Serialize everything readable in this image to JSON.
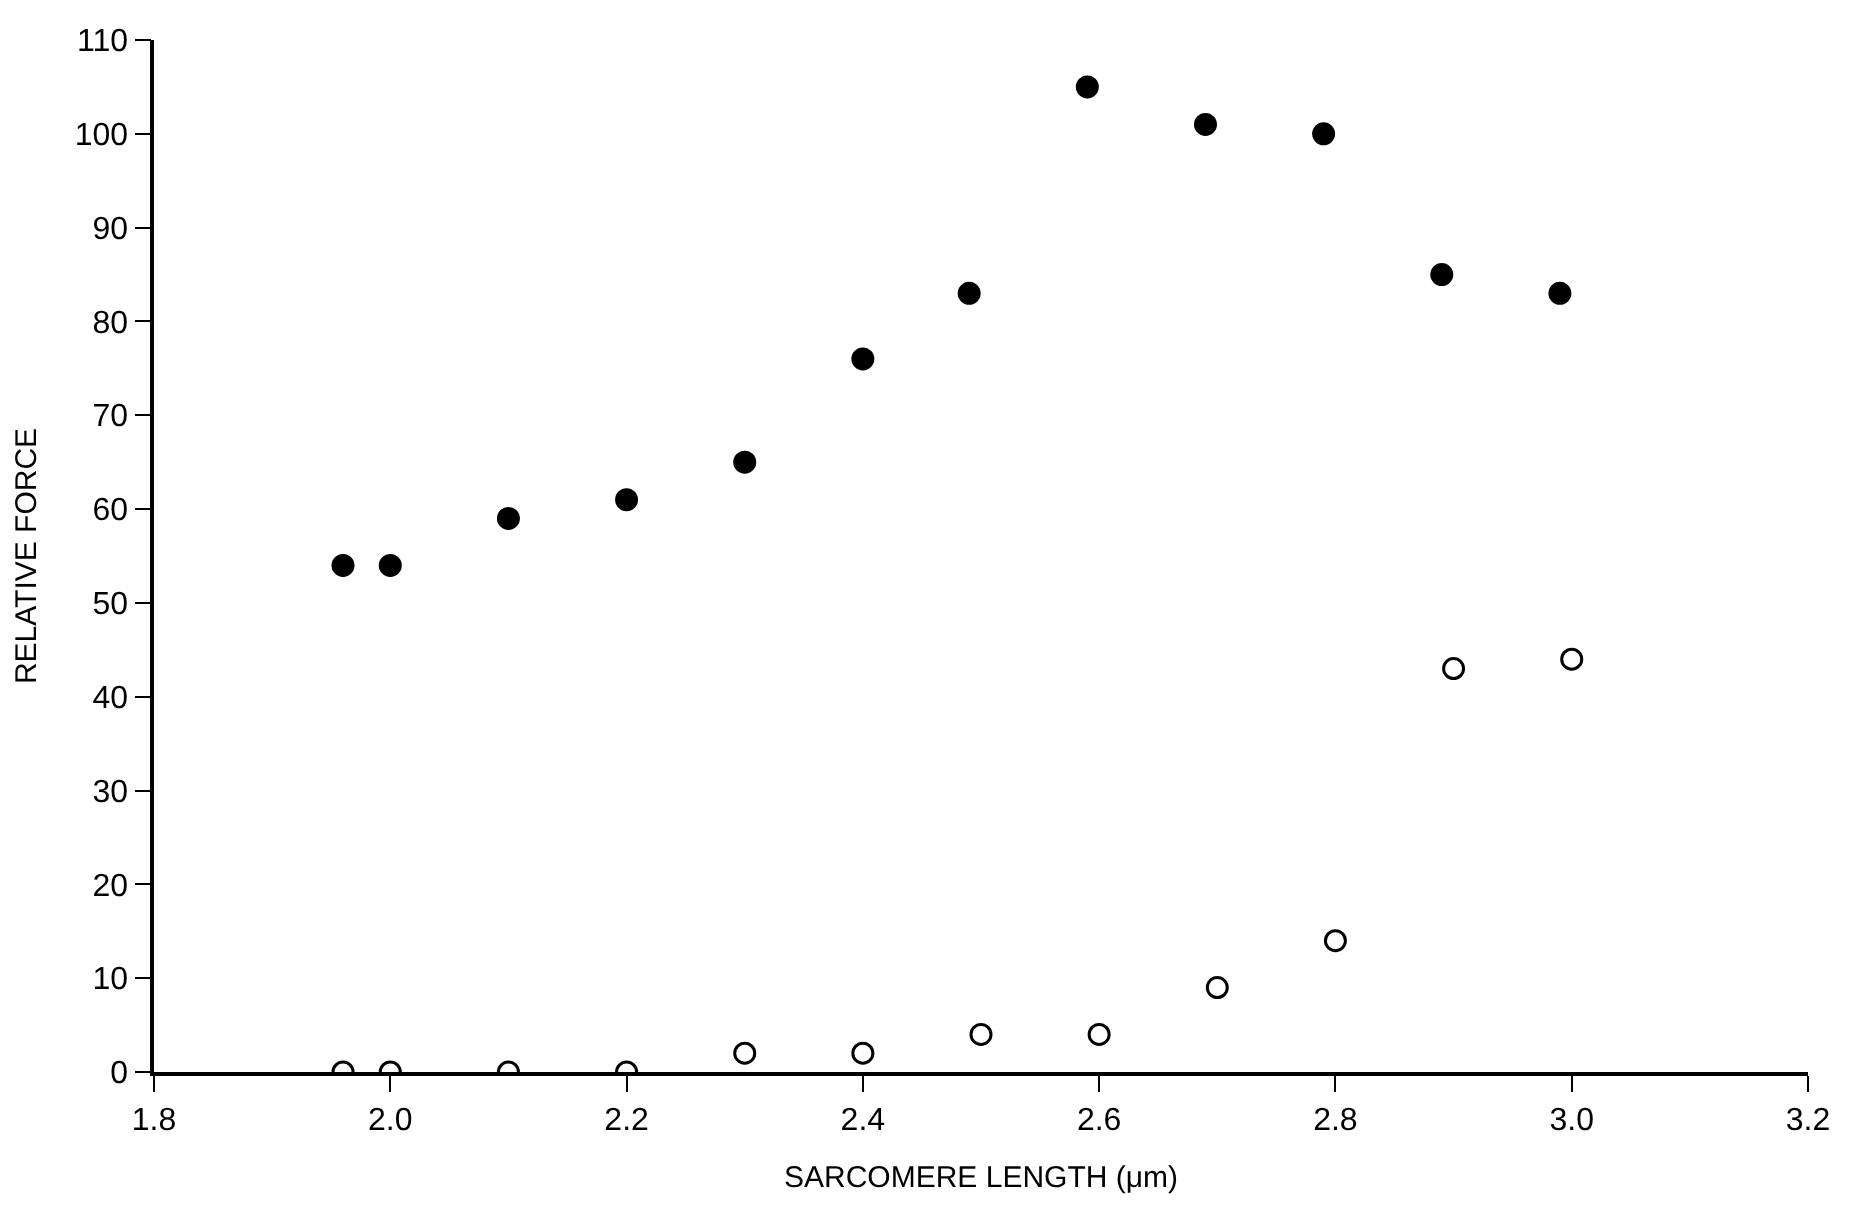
{
  "chart_data": {
    "type": "scatter",
    "xlabel": "SARCOMERE LENGTH (μm)",
    "ylabel": "RELATIVE FORCE",
    "xlim": [
      1.8,
      3.2
    ],
    "xticks": [
      {
        "value": 1.8,
        "label": "1.8"
      },
      {
        "value": 2.0,
        "label": "2.0"
      },
      {
        "value": 2.2,
        "label": "2.2"
      },
      {
        "value": 2.4,
        "label": "2.4"
      },
      {
        "value": 2.6,
        "label": "2.6"
      },
      {
        "value": 2.8,
        "label": "2.8"
      },
      {
        "value": 3.0,
        "label": "3.0"
      },
      {
        "value": 3.2,
        "label": "3.2"
      }
    ],
    "ylim": [
      0,
      110
    ],
    "yticks": [
      0,
      10,
      20,
      30,
      40,
      50,
      60,
      70,
      80,
      90,
      100,
      110
    ],
    "series": [
      {
        "color": "#000000",
        "marker": "circle",
        "x": [
          1.96,
          2.0,
          2.1,
          2.2,
          2.3,
          2.4,
          2.49,
          2.59,
          2.69,
          2.79,
          2.89,
          2.99
        ],
        "values": [
          54,
          54,
          59,
          61,
          65,
          76,
          83,
          105,
          101,
          100,
          85,
          83
        ]
      },
      {
        "color": "#000000",
        "marker": "circle-open",
        "x": [
          1.96,
          2.0,
          2.1,
          2.2,
          2.3,
          2.4,
          2.5,
          2.6,
          2.7,
          2.8,
          2.9,
          3.0
        ],
        "values": [
          0,
          0,
          0,
          0,
          2,
          2,
          4,
          4,
          9,
          14,
          43,
          44
        ]
      }
    ]
  }
}
